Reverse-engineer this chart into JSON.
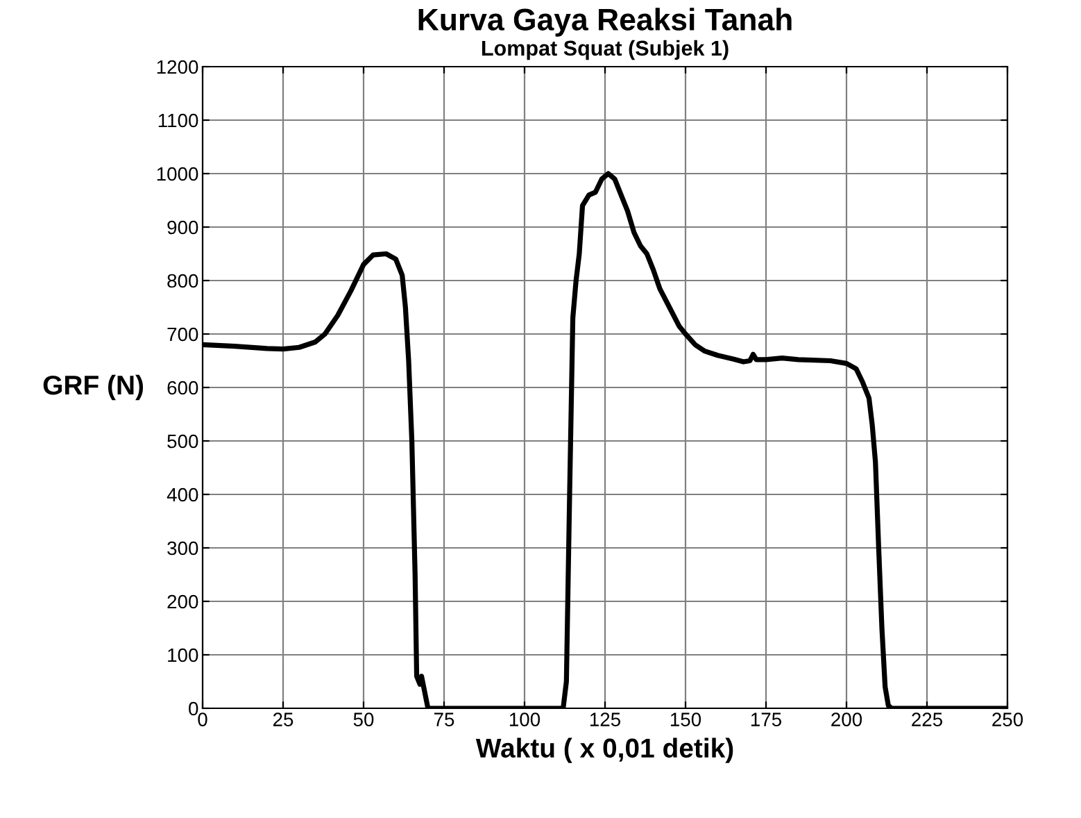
{
  "chart_data": {
    "type": "line",
    "title": "Kurva Gaya Reaksi Tanah",
    "subtitle": "Lompat Squat (Subjek 1)",
    "xlabel": "Waktu ( x 0,01 detik)",
    "ylabel": "GRF (N)",
    "xlim": [
      0,
      250
    ],
    "xticks": [
      0,
      25,
      50,
      75,
      100,
      125,
      150,
      175,
      200,
      225,
      250
    ],
    "ylim": [
      0,
      1200
    ],
    "yticks": [
      0,
      100,
      200,
      300,
      400,
      500,
      600,
      700,
      800,
      900,
      1000,
      1100,
      1200
    ],
    "grid": true,
    "legend": false,
    "series": [
      {
        "color": "#000000",
        "x": [
          0,
          10,
          20,
          25,
          30,
          35,
          38,
          42,
          46,
          50,
          53,
          57,
          60,
          62,
          63,
          64,
          65,
          66,
          66.5,
          67.5,
          68,
          69,
          70,
          112,
          113,
          114,
          115,
          116,
          117,
          118,
          120,
          122,
          124,
          126,
          128,
          130,
          132,
          134,
          136,
          138,
          140,
          142,
          145,
          148,
          150,
          153,
          156,
          160,
          165,
          168,
          170,
          171,
          172,
          175,
          180,
          185,
          195,
          200,
          203,
          205,
          207,
          208,
          209,
          210,
          211,
          212,
          213,
          214,
          250
        ],
        "values": [
          680,
          677,
          673,
          672,
          675,
          685,
          700,
          735,
          780,
          830,
          848,
          850,
          840,
          810,
          750,
          650,
          500,
          250,
          60,
          45,
          60,
          30,
          0,
          0,
          50,
          400,
          730,
          800,
          850,
          940,
          960,
          965,
          990,
          1000,
          990,
          960,
          930,
          890,
          865,
          850,
          820,
          785,
          750,
          715,
          700,
          680,
          668,
          660,
          653,
          648,
          650,
          662,
          652,
          652,
          655,
          652,
          650,
          645,
          635,
          610,
          580,
          530,
          460,
          300,
          150,
          40,
          5,
          0,
          0
        ]
      }
    ]
  }
}
